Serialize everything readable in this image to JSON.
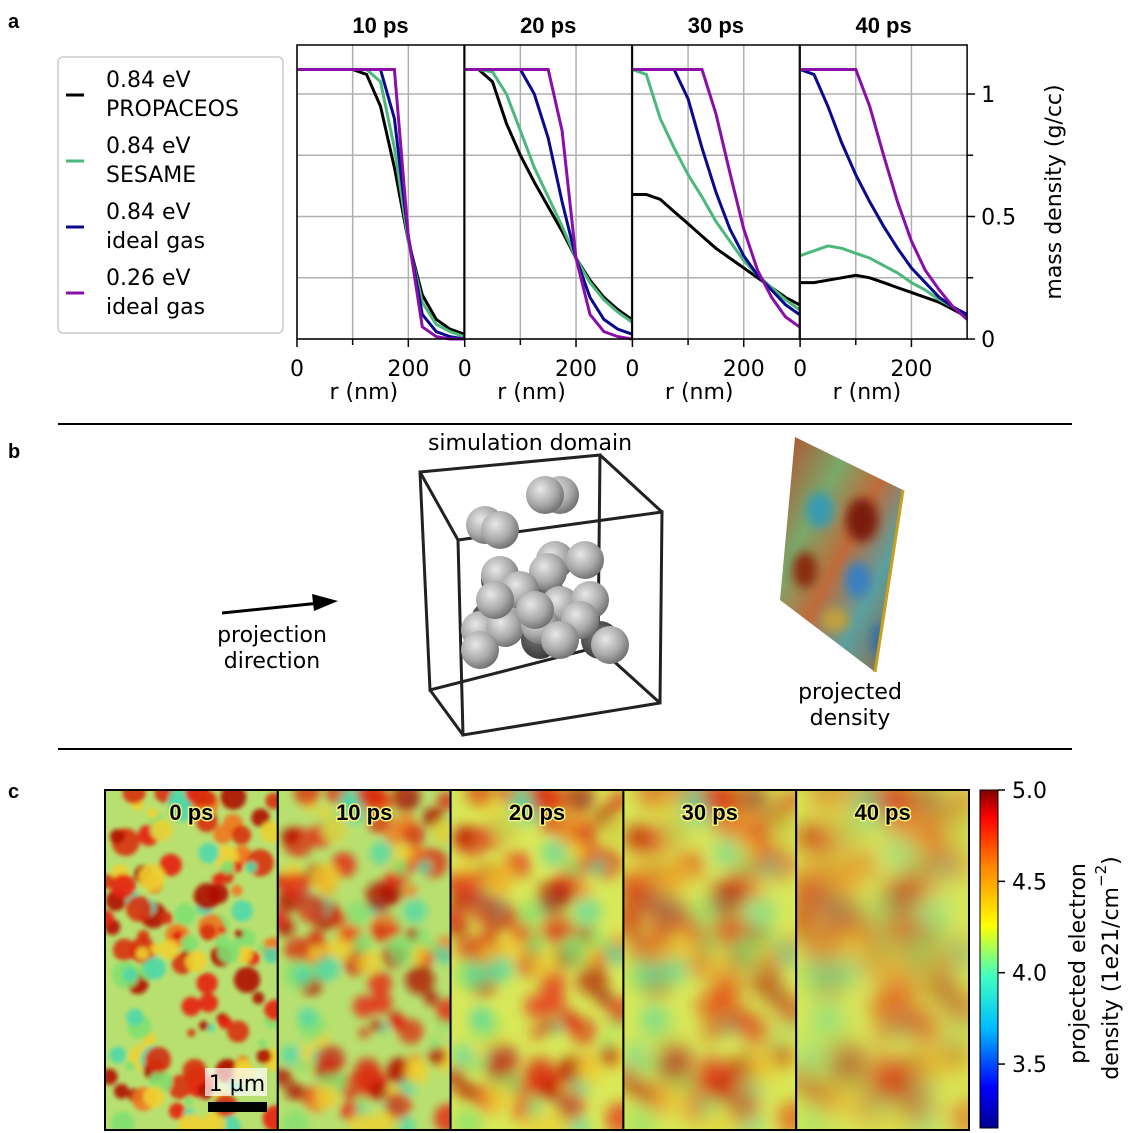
{
  "panel_labels": [
    "a",
    "b",
    "c"
  ],
  "chart_data": [
    {
      "type": "line",
      "title": "10 ps",
      "xlabel": "r (nm)",
      "x": [
        0,
        25,
        50,
        75,
        100,
        125,
        150,
        175,
        200,
        225,
        250,
        275,
        300
      ],
      "xlim": [
        0,
        300
      ],
      "xticks": [
        0,
        200
      ],
      "xminorticks": [
        100
      ],
      "ylim": [
        0,
        1.2
      ],
      "yticks": [
        0,
        0.5,
        1
      ],
      "yminorticks": [
        0.25,
        0.75
      ],
      "grid": true,
      "legend": "left",
      "series": [
        {
          "name": [
            "0.84 eV",
            "PROPACEOS"
          ],
          "color": "#000000",
          "values": [
            1.1,
            1.1,
            1.1,
            1.1,
            1.1,
            1.08,
            0.95,
            0.7,
            0.4,
            0.18,
            0.08,
            0.04,
            0.02
          ]
        },
        {
          "name": [
            "0.84 eV",
            "SESAME"
          ],
          "color": "#4cb87c",
          "values": [
            1.1,
            1.1,
            1.1,
            1.1,
            1.1,
            1.1,
            1.05,
            0.78,
            0.4,
            0.15,
            0.06,
            0.03,
            0.01
          ]
        },
        {
          "name": [
            "0.84 eV",
            "ideal gas"
          ],
          "color": "#0a0a8c",
          "values": [
            1.1,
            1.1,
            1.1,
            1.1,
            1.1,
            1.1,
            1.1,
            0.9,
            0.42,
            0.1,
            0.03,
            0.01,
            0
          ]
        },
        {
          "name": [
            "0.26 eV",
            "ideal gas"
          ],
          "color": "#8a0fa8",
          "values": [
            1.1,
            1.1,
            1.1,
            1.1,
            1.1,
            1.1,
            1.1,
            1.1,
            0.42,
            0.05,
            0.01,
            0,
            0
          ]
        }
      ]
    },
    {
      "type": "line",
      "title": "20 ps",
      "xlabel": "r (nm)",
      "x": [
        0,
        25,
        50,
        75,
        100,
        125,
        150,
        175,
        200,
        225,
        250,
        275,
        300
      ],
      "xlim": [
        0,
        300
      ],
      "xticks": [
        0,
        200
      ],
      "xminorticks": [
        100
      ],
      "ylim": [
        0,
        1.2
      ],
      "yticks": [
        0,
        0.5,
        1
      ],
      "yminorticks": [
        0.25,
        0.75
      ],
      "grid": true,
      "series": [
        {
          "color": "#000000",
          "values": [
            1.1,
            1.1,
            1.05,
            0.88,
            0.75,
            0.64,
            0.54,
            0.44,
            0.33,
            0.24,
            0.17,
            0.12,
            0.08
          ]
        },
        {
          "color": "#4cb87c",
          "values": [
            1.1,
            1.1,
            1.09,
            1.0,
            0.85,
            0.7,
            0.58,
            0.46,
            0.33,
            0.23,
            0.16,
            0.11,
            0.07
          ]
        },
        {
          "color": "#0a0a8c",
          "values": [
            1.1,
            1.1,
            1.1,
            1.1,
            1.1,
            1.0,
            0.82,
            0.56,
            0.33,
            0.17,
            0.08,
            0.04,
            0.02
          ]
        },
        {
          "color": "#8a0fa8",
          "values": [
            1.1,
            1.1,
            1.1,
            1.1,
            1.1,
            1.1,
            1.1,
            0.85,
            0.33,
            0.1,
            0.03,
            0.01,
            0
          ]
        }
      ]
    },
    {
      "type": "line",
      "title": "30 ps",
      "xlabel": "r (nm)",
      "x": [
        0,
        25,
        50,
        75,
        100,
        125,
        150,
        175,
        200,
        225,
        250,
        275,
        300
      ],
      "xlim": [
        0,
        300
      ],
      "xticks": [
        0,
        200
      ],
      "xminorticks": [
        100
      ],
      "ylim": [
        0,
        1.2
      ],
      "yticks": [
        0,
        0.5,
        1
      ],
      "yminorticks": [
        0.25,
        0.75
      ],
      "grid": true,
      "series": [
        {
          "color": "#000000",
          "values": [
            0.59,
            0.59,
            0.57,
            0.52,
            0.47,
            0.42,
            0.37,
            0.33,
            0.29,
            0.25,
            0.21,
            0.17,
            0.14
          ]
        },
        {
          "color": "#4cb87c",
          "values": [
            1.1,
            1.08,
            0.9,
            0.78,
            0.67,
            0.58,
            0.48,
            0.4,
            0.32,
            0.26,
            0.21,
            0.16,
            0.12
          ]
        },
        {
          "color": "#0a0a8c",
          "values": [
            1.1,
            1.1,
            1.1,
            1.1,
            0.98,
            0.78,
            0.6,
            0.45,
            0.34,
            0.26,
            0.2,
            0.14,
            0.1
          ]
        },
        {
          "color": "#8a0fa8",
          "values": [
            1.1,
            1.1,
            1.1,
            1.1,
            1.1,
            1.1,
            0.92,
            0.68,
            0.45,
            0.28,
            0.17,
            0.09,
            0.05
          ]
        }
      ]
    },
    {
      "type": "line",
      "title": "40 ps",
      "xlabel": "r (nm)",
      "ylabel": "mass density (g/cc)",
      "x": [
        0,
        25,
        50,
        75,
        100,
        125,
        150,
        175,
        200,
        225,
        250,
        275,
        300
      ],
      "xlim": [
        0,
        300
      ],
      "xticks": [
        0,
        200
      ],
      "xminorticks": [
        100
      ],
      "ylim": [
        0,
        1.2
      ],
      "yticks": [
        0,
        0.5,
        1
      ],
      "yminorticks": [
        0.25,
        0.75
      ],
      "grid": true,
      "series": [
        {
          "color": "#000000",
          "values": [
            0.23,
            0.23,
            0.24,
            0.25,
            0.26,
            0.25,
            0.23,
            0.21,
            0.19,
            0.17,
            0.15,
            0.12,
            0.09
          ]
        },
        {
          "color": "#4cb87c",
          "values": [
            0.34,
            0.36,
            0.38,
            0.37,
            0.35,
            0.33,
            0.3,
            0.27,
            0.23,
            0.2,
            0.16,
            0.13,
            0.1
          ]
        },
        {
          "color": "#0a0a8c",
          "values": [
            1.1,
            1.08,
            0.95,
            0.8,
            0.67,
            0.56,
            0.46,
            0.37,
            0.29,
            0.23,
            0.17,
            0.13,
            0.1
          ]
        },
        {
          "color": "#8a0fa8",
          "values": [
            1.1,
            1.1,
            1.1,
            1.1,
            1.1,
            0.95,
            0.75,
            0.56,
            0.4,
            0.28,
            0.2,
            0.13,
            0.08
          ]
        }
      ]
    }
  ],
  "panel_b": {
    "domain_label": "simulation domain",
    "arrow_label": [
      "projection",
      "direction"
    ],
    "projection_label": [
      "projected",
      "density"
    ]
  },
  "panel_c": {
    "frames": [
      "0 ps",
      "10 ps",
      "20 ps",
      "30 ps",
      "40 ps"
    ],
    "scale_bar": "1 µm",
    "colorbar": {
      "clim": [
        3.15,
        5.0
      ],
      "cticks": [
        3.5,
        {
          "value": 4,
          "label": "4.0"
        },
        4.5,
        {
          "value": 5,
          "label": "5.0"
        }
      ],
      "label": [
        "projected electron",
        "density (1e21/cm"
      ],
      "label_sup": "−2",
      "label_end": ")"
    }
  }
}
